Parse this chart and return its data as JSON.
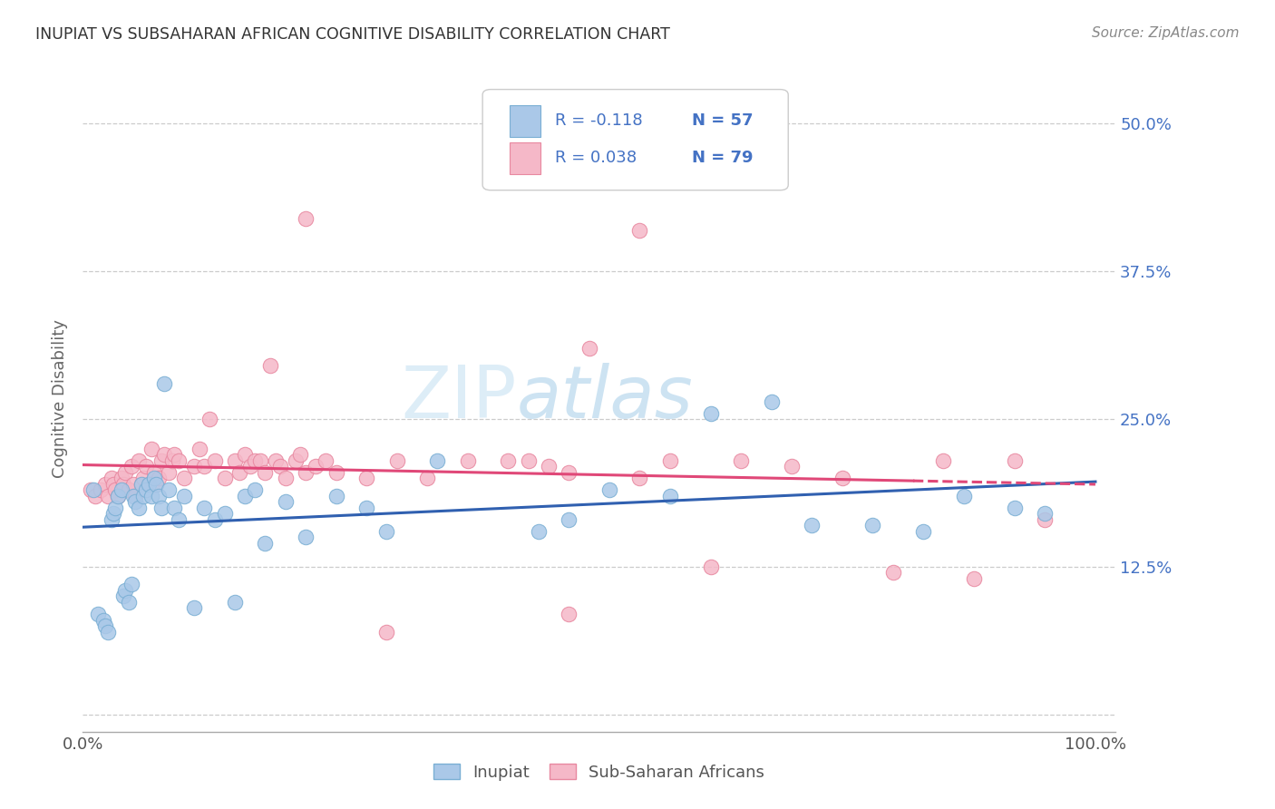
{
  "title": "INUPIAT VS SUBSAHARAN AFRICAN COGNITIVE DISABILITY CORRELATION CHART",
  "source": "Source: ZipAtlas.com",
  "ylabel": "Cognitive Disability",
  "blue_scatter_color": "#aac8e8",
  "blue_edge_color": "#7aafd4",
  "pink_scatter_color": "#f5b8c8",
  "pink_edge_color": "#e888a0",
  "line_blue_color": "#3060b0",
  "line_pink_color": "#e04878",
  "ytick_color": "#4472c4",
  "legend_text_color": "#4472c4",
  "title_color": "#333333",
  "source_color": "#888888",
  "watermark_color": "#ddeef8",
  "inupiat_x": [
    0.01,
    0.015,
    0.02,
    0.022,
    0.025,
    0.028,
    0.03,
    0.032,
    0.035,
    0.038,
    0.04,
    0.042,
    0.045,
    0.048,
    0.05,
    0.052,
    0.055,
    0.058,
    0.06,
    0.062,
    0.065,
    0.068,
    0.07,
    0.072,
    0.075,
    0.078,
    0.08,
    0.085,
    0.09,
    0.095,
    0.1,
    0.11,
    0.12,
    0.13,
    0.14,
    0.15,
    0.16,
    0.17,
    0.18,
    0.2,
    0.22,
    0.25,
    0.28,
    0.3,
    0.35,
    0.45,
    0.48,
    0.52,
    0.58,
    0.62,
    0.68,
    0.72,
    0.78,
    0.83,
    0.87,
    0.92,
    0.95
  ],
  "inupiat_y": [
    0.19,
    0.085,
    0.08,
    0.075,
    0.07,
    0.165,
    0.17,
    0.175,
    0.185,
    0.19,
    0.1,
    0.105,
    0.095,
    0.11,
    0.185,
    0.18,
    0.175,
    0.195,
    0.185,
    0.19,
    0.195,
    0.185,
    0.2,
    0.195,
    0.185,
    0.175,
    0.28,
    0.19,
    0.175,
    0.165,
    0.185,
    0.09,
    0.175,
    0.165,
    0.17,
    0.095,
    0.185,
    0.19,
    0.145,
    0.18,
    0.15,
    0.185,
    0.175,
    0.155,
    0.215,
    0.155,
    0.165,
    0.19,
    0.185,
    0.255,
    0.265,
    0.16,
    0.16,
    0.155,
    0.185,
    0.175,
    0.17
  ],
  "subsaharan_x": [
    0.008,
    0.012,
    0.018,
    0.022,
    0.025,
    0.028,
    0.03,
    0.032,
    0.035,
    0.038,
    0.04,
    0.042,
    0.045,
    0.048,
    0.05,
    0.052,
    0.055,
    0.058,
    0.06,
    0.062,
    0.065,
    0.068,
    0.07,
    0.072,
    0.075,
    0.078,
    0.08,
    0.085,
    0.088,
    0.09,
    0.095,
    0.1,
    0.11,
    0.115,
    0.12,
    0.125,
    0.13,
    0.14,
    0.15,
    0.155,
    0.16,
    0.165,
    0.17,
    0.175,
    0.18,
    0.185,
    0.19,
    0.195,
    0.2,
    0.21,
    0.215,
    0.22,
    0.23,
    0.24,
    0.25,
    0.28,
    0.31,
    0.34,
    0.38,
    0.42,
    0.44,
    0.46,
    0.48,
    0.5,
    0.55,
    0.58,
    0.62,
    0.65,
    0.7,
    0.75,
    0.8,
    0.85,
    0.88,
    0.92,
    0.95,
    0.22,
    0.55,
    0.3,
    0.48
  ],
  "subsaharan_y": [
    0.19,
    0.185,
    0.19,
    0.195,
    0.185,
    0.2,
    0.195,
    0.19,
    0.185,
    0.2,
    0.195,
    0.205,
    0.19,
    0.21,
    0.195,
    0.185,
    0.215,
    0.195,
    0.2,
    0.21,
    0.195,
    0.225,
    0.205,
    0.195,
    0.2,
    0.215,
    0.22,
    0.205,
    0.215,
    0.22,
    0.215,
    0.2,
    0.21,
    0.225,
    0.21,
    0.25,
    0.215,
    0.2,
    0.215,
    0.205,
    0.22,
    0.21,
    0.215,
    0.215,
    0.205,
    0.295,
    0.215,
    0.21,
    0.2,
    0.215,
    0.22,
    0.205,
    0.21,
    0.215,
    0.205,
    0.2,
    0.215,
    0.2,
    0.215,
    0.215,
    0.215,
    0.21,
    0.205,
    0.31,
    0.2,
    0.215,
    0.125,
    0.215,
    0.21,
    0.2,
    0.12,
    0.215,
    0.115,
    0.215,
    0.165,
    0.42,
    0.41,
    0.07,
    0.085
  ],
  "inupiat_line_x": [
    0.0,
    1.0
  ],
  "inupiat_line_y_start": 0.184,
  "inupiat_line_y_end": 0.162,
  "subsaharan_line_x": [
    0.0,
    1.0
  ],
  "subsaharan_line_y_start": 0.196,
  "subsaharan_line_y_end": 0.212,
  "subsaharan_line_dash_start": 0.82,
  "xlim": [
    0.0,
    1.02
  ],
  "ylim": [
    -0.015,
    0.55
  ],
  "yticks": [
    0.0,
    0.125,
    0.25,
    0.375,
    0.5
  ],
  "ytick_labels": [
    "",
    "12.5%",
    "25.0%",
    "37.5%",
    "50.0%"
  ],
  "xtick_positions": [
    0.0,
    1.0
  ],
  "xtick_labels": [
    "0.0%",
    "100.0%"
  ]
}
